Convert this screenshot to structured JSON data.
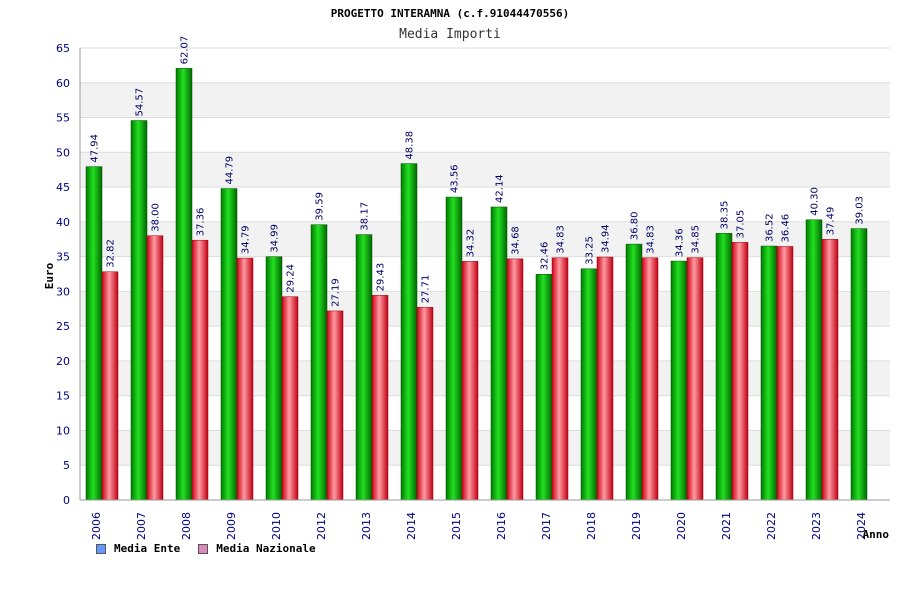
{
  "chart_data": {
    "type": "bar",
    "title": "PROGETTO INTERAMNA (c.f.91044470556)",
    "subtitle": "Media Importi",
    "xlabel": "Anno",
    "ylabel": "Euro",
    "ylim": [
      0,
      65
    ],
    "yticks": [
      0,
      5,
      10,
      15,
      20,
      25,
      30,
      35,
      40,
      45,
      50,
      55,
      60,
      65
    ],
    "grid": true,
    "legend_position": "bottom-left",
    "categories": [
      "2006",
      "2007",
      "2008",
      "2009",
      "2010",
      "2012",
      "2013",
      "2014",
      "2015",
      "2016",
      "2017",
      "2018",
      "2019",
      "2020",
      "2021",
      "2022",
      "2023",
      "2024"
    ],
    "series": [
      {
        "name": "Media Ente",
        "color": "#00b000",
        "legend_color": "#6699ff",
        "values": [
          47.94,
          54.57,
          62.07,
          44.79,
          34.99,
          39.59,
          38.17,
          48.38,
          43.56,
          42.14,
          32.46,
          33.25,
          36.8,
          34.36,
          38.35,
          36.52,
          40.3,
          39.03
        ],
        "labels": [
          "47.94",
          "54.57",
          "62.07",
          "44.79",
          "34.99",
          "39.59",
          "38.17",
          "48.38",
          "43.56",
          "42.14",
          "32.46",
          "33.25",
          "36.80",
          "34.36",
          "38.35",
          "36.52",
          "40.30",
          "39.03"
        ]
      },
      {
        "name": "Media Nazionale",
        "color": "#e01a2a",
        "legend_color": "#dd88bb",
        "values": [
          32.82,
          38.0,
          37.36,
          34.79,
          29.24,
          27.19,
          29.43,
          27.71,
          34.32,
          34.68,
          34.83,
          34.94,
          34.83,
          34.85,
          37.05,
          36.46,
          37.49,
          null
        ],
        "labels": [
          "32.82",
          "38.00",
          "37.36",
          "34.79",
          "29.24",
          "27.19",
          "29.43",
          "27.71",
          "34.32",
          "34.68",
          "34.83",
          "34.94",
          "34.83",
          "34.85",
          "37.05",
          "36.46",
          "37.49",
          ""
        ]
      }
    ]
  }
}
